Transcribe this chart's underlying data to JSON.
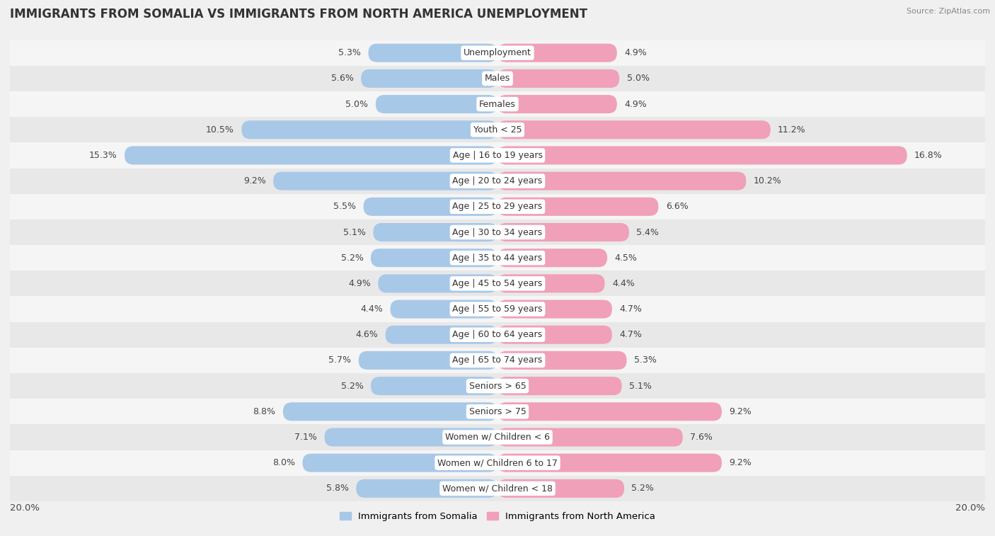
{
  "title": "IMMIGRANTS FROM SOMALIA VS IMMIGRANTS FROM NORTH AMERICA UNEMPLOYMENT",
  "source": "Source: ZipAtlas.com",
  "categories": [
    "Unemployment",
    "Males",
    "Females",
    "Youth < 25",
    "Age | 16 to 19 years",
    "Age | 20 to 24 years",
    "Age | 25 to 29 years",
    "Age | 30 to 34 years",
    "Age | 35 to 44 years",
    "Age | 45 to 54 years",
    "Age | 55 to 59 years",
    "Age | 60 to 64 years",
    "Age | 65 to 74 years",
    "Seniors > 65",
    "Seniors > 75",
    "Women w/ Children < 6",
    "Women w/ Children 6 to 17",
    "Women w/ Children < 18"
  ],
  "somalia_values": [
    5.3,
    5.6,
    5.0,
    10.5,
    15.3,
    9.2,
    5.5,
    5.1,
    5.2,
    4.9,
    4.4,
    4.6,
    5.7,
    5.2,
    8.8,
    7.1,
    8.0,
    5.8
  ],
  "north_america_values": [
    4.9,
    5.0,
    4.9,
    11.2,
    16.8,
    10.2,
    6.6,
    5.4,
    4.5,
    4.4,
    4.7,
    4.7,
    5.3,
    5.1,
    9.2,
    7.6,
    9.2,
    5.2
  ],
  "somalia_color": "#a8c8e8",
  "north_america_color": "#f0a0b8",
  "row_bg_even": "#f5f5f5",
  "row_bg_odd": "#e8e8e8",
  "background_color": "#f0f0f0",
  "label_bg_color": "#ffffff",
  "xlim": 20.0,
  "bar_height": 0.72,
  "title_fontsize": 12,
  "label_fontsize": 9,
  "value_fontsize": 9,
  "legend_fontsize": 9.5
}
